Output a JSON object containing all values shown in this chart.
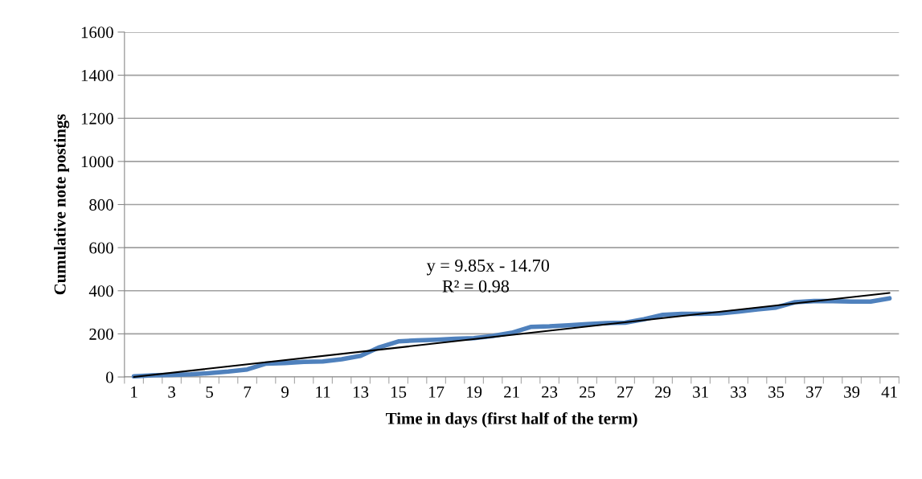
{
  "chart_data": {
    "type": "line",
    "xlabel": "Time in days (first half of the term)",
    "ylabel": "Cumulative note postings",
    "categories": [
      "1",
      null,
      "3",
      null,
      "5",
      null,
      "7",
      null,
      "9",
      null,
      "11",
      null,
      "13",
      null,
      "15",
      null,
      "17",
      null,
      "19",
      null,
      "21",
      null,
      "23",
      null,
      "25",
      null,
      "27",
      null,
      "29",
      null,
      "31",
      null,
      "33",
      null,
      "35",
      null,
      "37",
      null,
      "39",
      null,
      "41"
    ],
    "series": [
      {
        "color": "#4f81bd",
        "values": [
          3,
          8,
          10,
          12,
          18,
          25,
          35,
          62,
          65,
          70,
          72,
          82,
          98,
          138,
          165,
          170,
          173,
          177,
          180,
          190,
          205,
          232,
          235,
          240,
          245,
          250,
          252,
          268,
          288,
          293,
          293,
          295,
          303,
          313,
          322,
          347,
          352,
          352,
          350,
          350,
          365
        ]
      },
      {
        "type": "line",
        "color": "#000000",
        "x": [
          "1",
          "41"
        ],
        "values": [
          0,
          390
        ]
      }
    ],
    "annotations": [
      "y = 9.85x - 14.70",
      "R² = 0.98"
    ],
    "ylim": [
      0,
      1600
    ],
    "yticks": [
      0,
      200,
      400,
      600,
      800,
      1000,
      1200,
      1400,
      1600
    ],
    "grid": "y",
    "legend": false,
    "marker": "none",
    "line_style": "solid"
  }
}
